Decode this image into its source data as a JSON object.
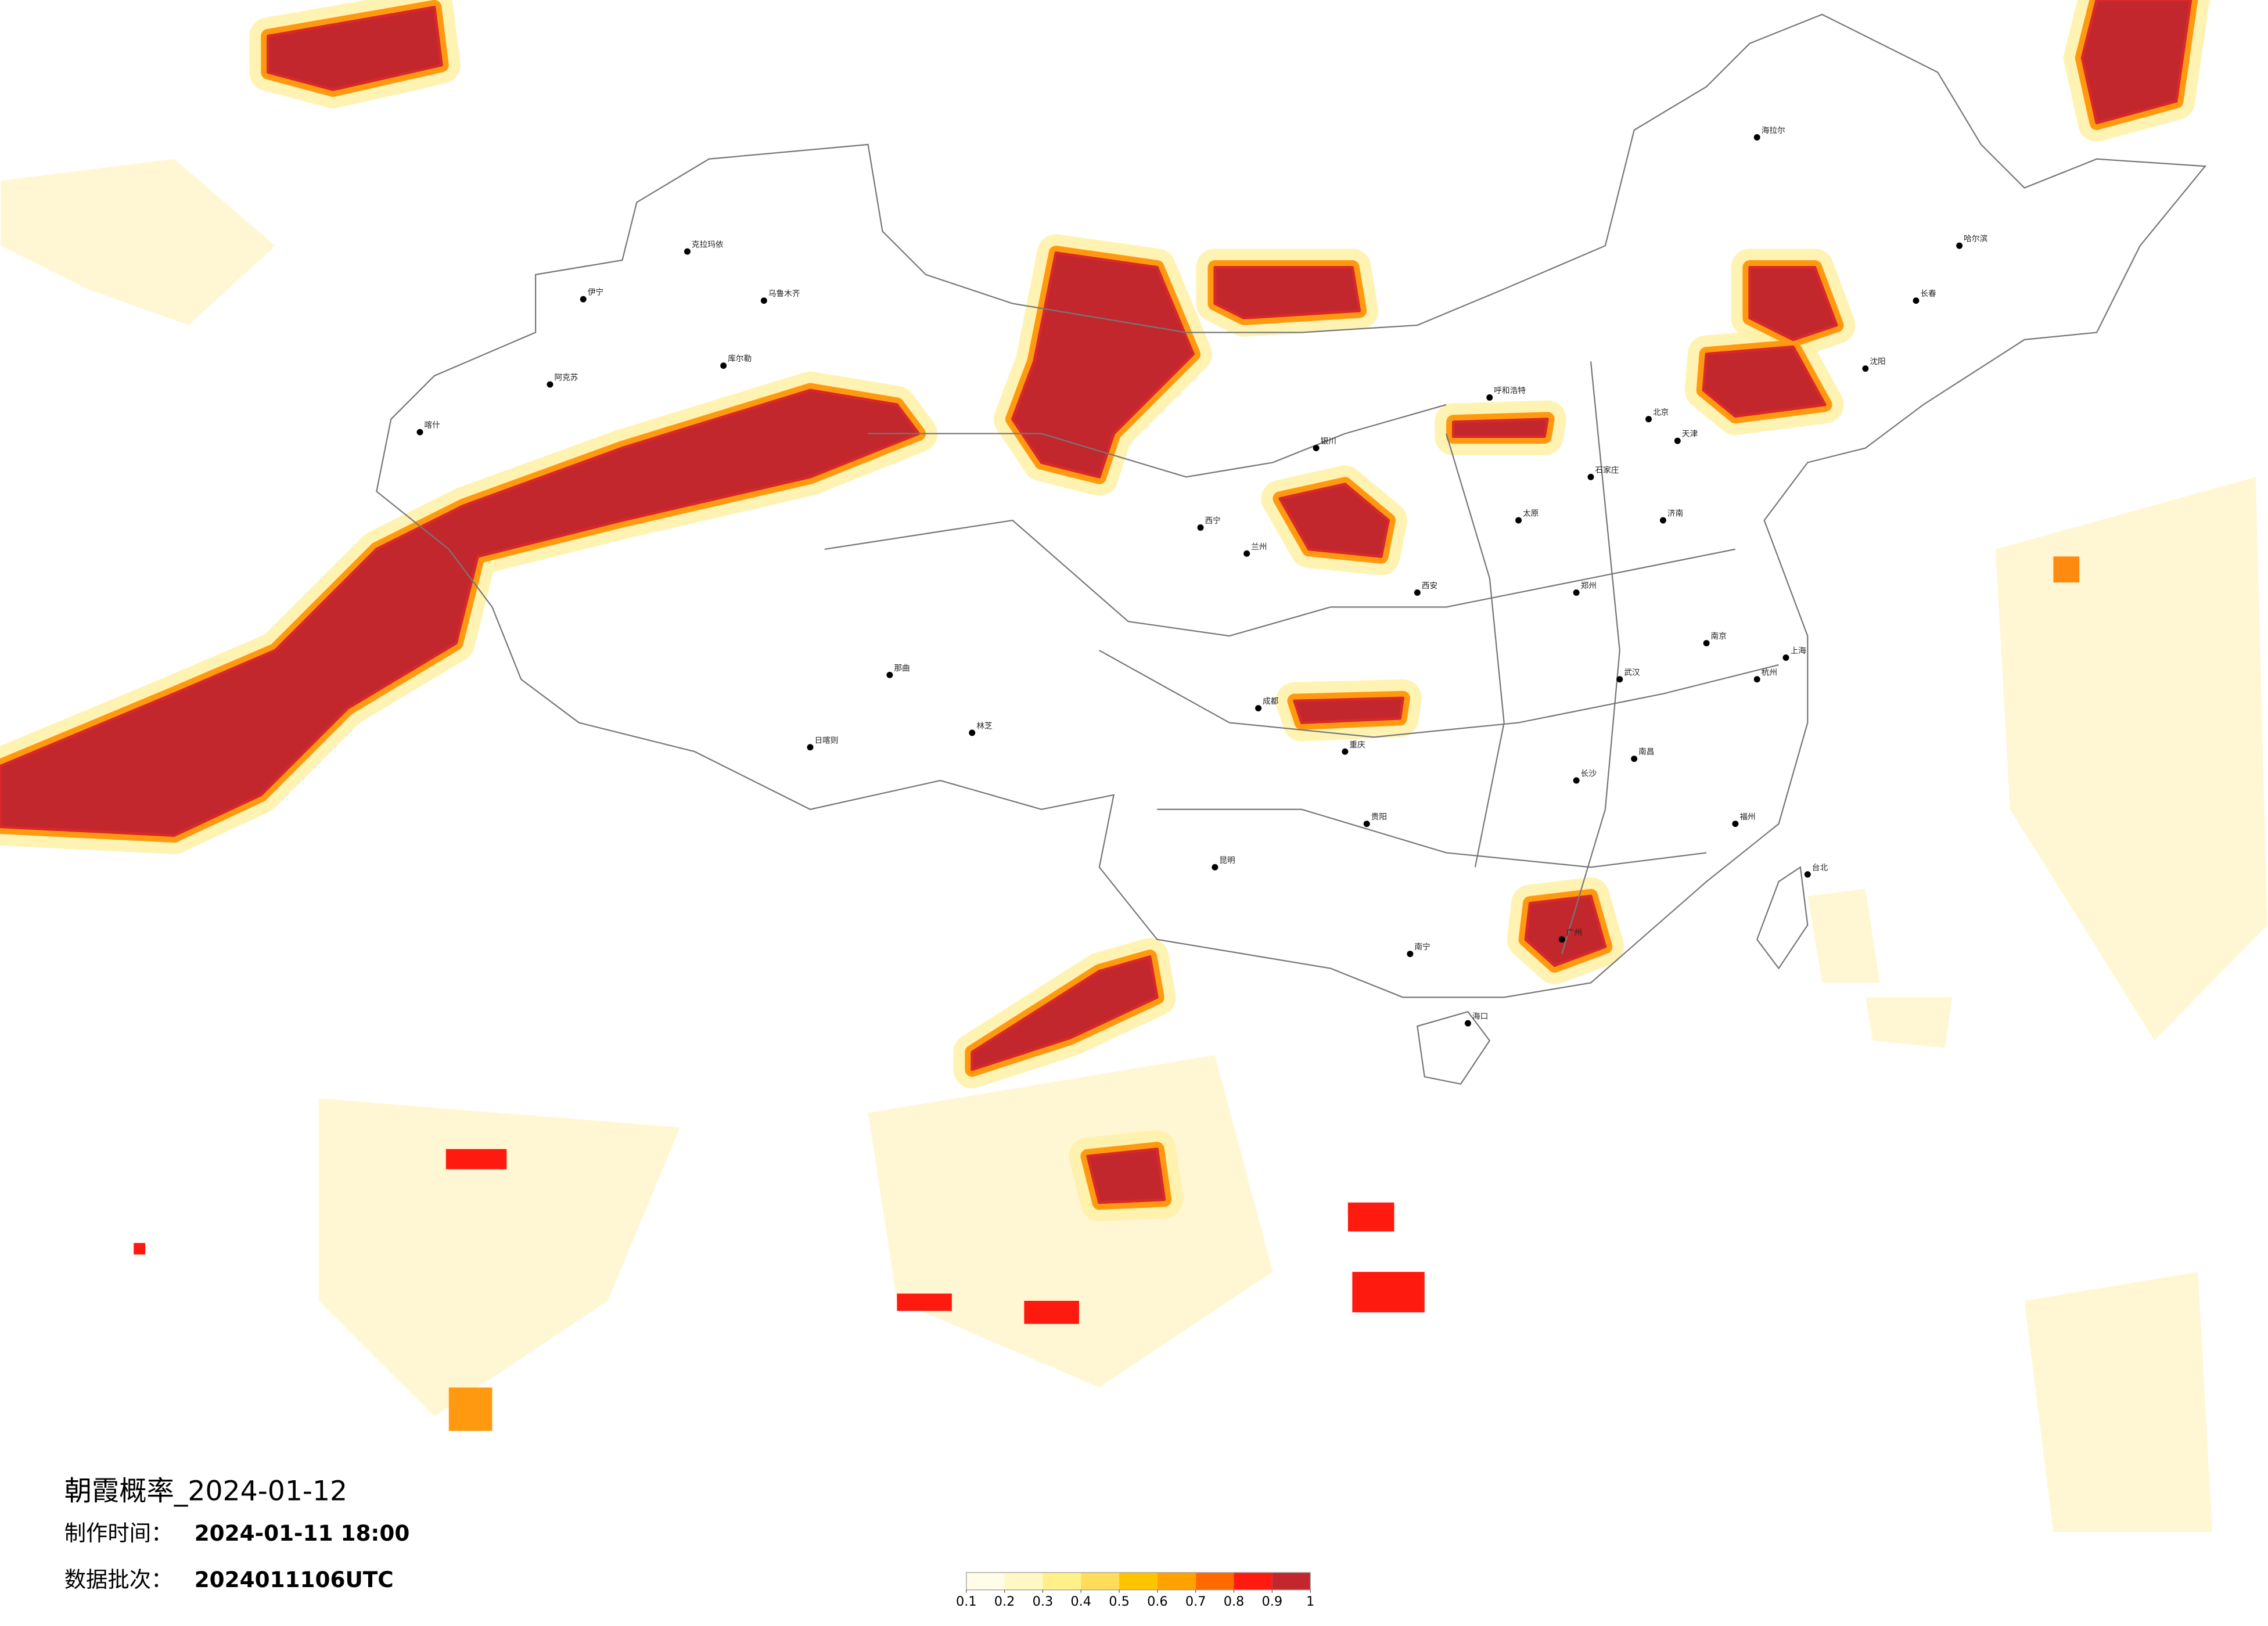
{
  "title": "朝霞概率_2024-01-12",
  "made_time": {
    "label": "制作时间：",
    "value": "2024-01-11 18:00"
  },
  "batch": {
    "label": "数据批次：",
    "value": "2024011106UTC"
  },
  "legend": {
    "ticks": [
      0.1,
      0.2,
      0.3,
      0.4,
      0.5,
      0.6,
      0.7,
      0.8,
      0.9,
      1
    ],
    "colors": [
      "#fffde8",
      "#fff8c4",
      "#fff08a",
      "#ffdc5a",
      "#ffc400",
      "#ffa200",
      "#ff6a00",
      "#ff1a10",
      "#c1272d"
    ]
  },
  "cities": [
    "克拉玛依",
    "乌鲁木齐",
    "伊宁",
    "阿克苏",
    "库尔勒",
    "喀什",
    "那曲",
    "日喀则",
    "林芝",
    "西宁",
    "兰州",
    "银川",
    "呼和浩特",
    "北京",
    "天津",
    "石家庄",
    "太原",
    "济南",
    "郑州",
    "西安",
    "成都",
    "重庆",
    "武汉",
    "长沙",
    "南昌",
    "杭州",
    "南京",
    "上海",
    "福州",
    "广州",
    "南宁",
    "昆明",
    "贵阳",
    "海口",
    "台北",
    "哈尔滨",
    "长春",
    "沈阳",
    "海拉尔"
  ]
}
